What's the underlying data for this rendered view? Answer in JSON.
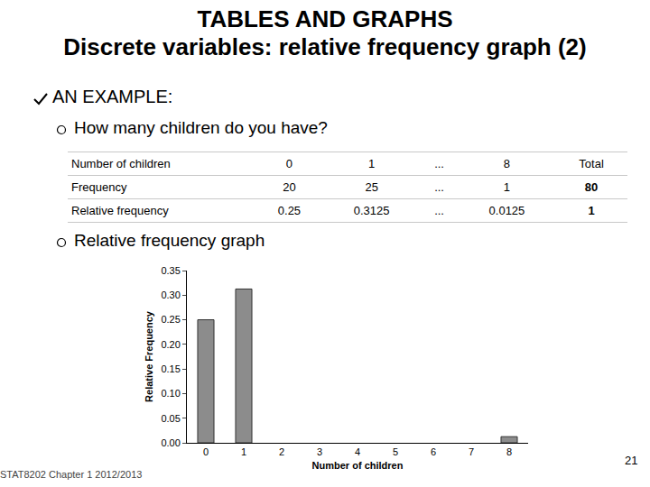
{
  "header": {
    "title": "TABLES AND GRAPHS",
    "subtitle": "Discrete variables: relative frequency graph (2)"
  },
  "bullet": "AN EXAMPLE:",
  "question": "How many children do you have?",
  "table": {
    "rows": [
      [
        "Number of children",
        0,
        1,
        "...",
        8,
        "Total"
      ],
      [
        "Frequency",
        20,
        25,
        "...",
        1,
        80
      ],
      [
        "Relative frequency",
        0.25,
        0.3125,
        "...",
        0.0125,
        1
      ]
    ]
  },
  "graph_caption": "Relative frequency graph",
  "footer": {
    "left": "STAT8202 Chapter 1 2012/2013",
    "page": 21
  },
  "chart_data": {
    "type": "bar",
    "x_label": "Number of children",
    "y_label": "Relative Frequency",
    "x": [
      0,
      1,
      2,
      3,
      4,
      5,
      6,
      7,
      8
    ],
    "values": [
      0.25,
      0.3125,
      null,
      null,
      null,
      null,
      null,
      null,
      0.0125
    ],
    "color": "#8c8c8c",
    "xlim": [
      -0.5,
      8.5
    ],
    "xticks": [
      0,
      1,
      2,
      3,
      4,
      5,
      6,
      7,
      8
    ],
    "ylim": [
      0,
      0.35
    ],
    "yticks": [
      {
        "value": 0,
        "label": "0.00"
      },
      {
        "value": 0.05,
        "label": "0.05"
      },
      {
        "value": 0.1,
        "label": "0.10"
      },
      {
        "value": 0.15,
        "label": "0.15"
      },
      {
        "value": 0.2,
        "label": "0.20"
      },
      {
        "value": 0.25,
        "label": "0.25"
      },
      {
        "value": 0.3,
        "label": "0.30"
      },
      {
        "value": 0.35,
        "label": "0.35"
      }
    ],
    "grid": false
  }
}
